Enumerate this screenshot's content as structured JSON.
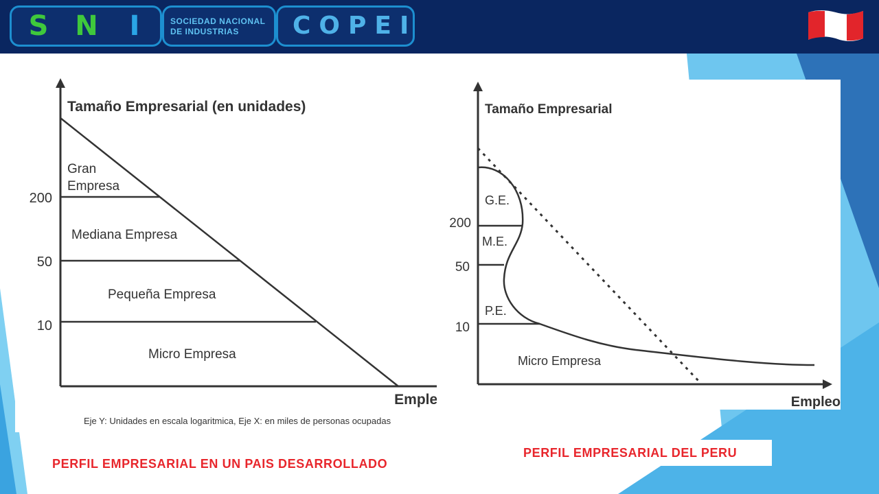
{
  "header": {
    "logo_letters": [
      "S",
      "N",
      "I"
    ],
    "logo_org_line1": "SOCIEDAD NACIONAL",
    "logo_org_line2": "DE INDUSTRIAS",
    "logo_copei": "COPEI",
    "flag": "peru-flag-icon"
  },
  "left_diagram": {
    "y_axis_title": "Tamaño Empresarial (en unidades)",
    "x_axis_title": "Empleo",
    "y_ticks": [
      "200",
      "50",
      "10"
    ],
    "regions": [
      "Gran",
      "Empresa",
      "Mediana Empresa",
      "Pequeña Empresa",
      "Micro Empresa"
    ],
    "footnote": "Eje Y: Unidades en escala logaritmica, Eje X: en miles de personas ocupadas"
  },
  "right_diagram": {
    "y_axis_title": "Tamaño Empresarial",
    "x_axis_title": "Empleo",
    "y_ticks": [
      "200",
      "50",
      "10"
    ],
    "regions": [
      "G.E.",
      "M.E.",
      "P.E.",
      "Micro Empresa"
    ]
  },
  "captions": {
    "left": "PERFIL EMPRESARIAL EN UN PAIS DESARROLLADO",
    "right": "PERFIL EMPRESARIAL DEL PERU"
  },
  "colors": {
    "header_bg": "#0a2660",
    "caption_red": "#e8262c",
    "accent_blue": "#1d8fd0",
    "logo_green": "#3fc83c"
  }
}
